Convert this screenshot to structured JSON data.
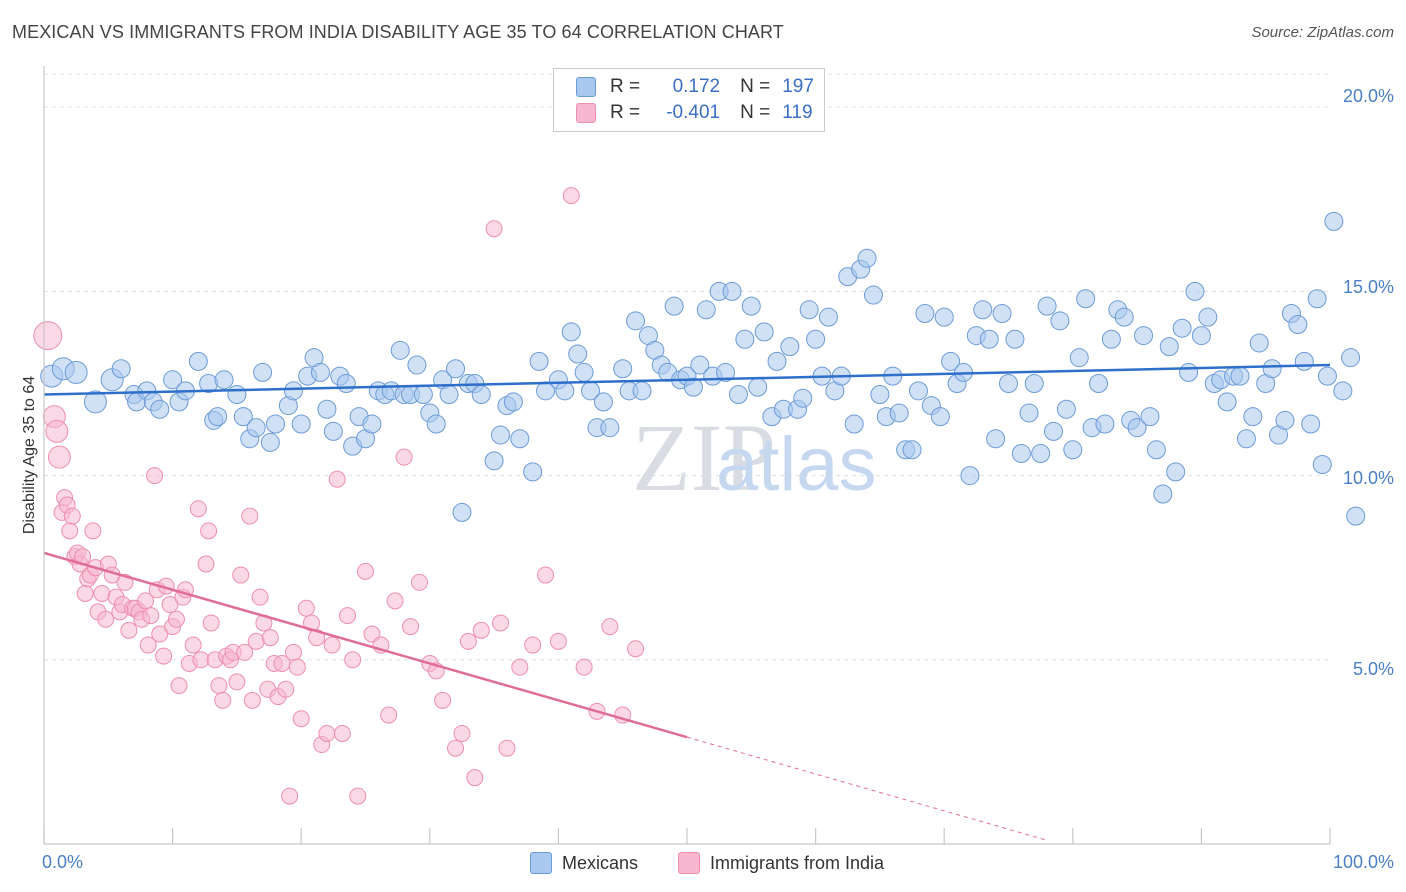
{
  "header": {
    "title": "MEXICAN VS IMMIGRANTS FROM INDIA DISABILITY AGE 35 TO 64 CORRELATION CHART",
    "source": "Source: ZipAtlas.com"
  },
  "legend": {
    "r_label": "R =",
    "n_label": "N =",
    "series1": {
      "r": "0.172",
      "n": "197"
    },
    "series2": {
      "r": "-0.401",
      "n": "119"
    }
  },
  "bottom_legend": {
    "series1": "Mexicans",
    "series2": "Immigrants from India"
  },
  "axes": {
    "ylabel": "Disability Age 35 to 64",
    "x_min_label": "0.0%",
    "x_max_label": "100.0%",
    "y_ticks": [
      "20.0%",
      "15.0%",
      "10.0%",
      "5.0%"
    ]
  },
  "watermark": {
    "zip": "ZIP",
    "atlas": "atlas"
  },
  "colors": {
    "blue_fill": "#a9c8ef",
    "blue_stroke": "#6d9bd6",
    "blue_line": "#2f6fcc",
    "pink_fill": "#f7b8cf",
    "pink_stroke": "#ec8fb0",
    "pink_line": "#e06d98"
  },
  "chart_data": {
    "type": "scatter",
    "title": "MEXICAN VS IMMIGRANTS FROM INDIA DISABILITY AGE 35 TO 64 CORRELATION CHART",
    "xlabel": "",
    "ylabel": "Disability Age 35 to 64",
    "xlim": [
      0,
      100
    ],
    "ylim": [
      0,
      20.9
    ],
    "grid": true,
    "legend_position": "top-center",
    "series": [
      {
        "name": "Mexicans",
        "r": 0.172,
        "n": 197,
        "trend": [
          [
            0,
            12.2
          ],
          [
            100,
            13.0
          ]
        ],
        "points": [
          [
            0.6,
            12.7
          ],
          [
            1.5,
            12.9
          ],
          [
            2.5,
            12.8
          ],
          [
            4,
            12.0
          ],
          [
            5.3,
            12.6
          ],
          [
            6,
            12.9
          ],
          [
            7,
            12.2
          ],
          [
            7.2,
            12.0
          ],
          [
            8,
            12.3
          ],
          [
            8.5,
            12.0
          ],
          [
            9,
            11.8
          ],
          [
            10,
            12.6
          ],
          [
            10.5,
            12.0
          ],
          [
            11,
            12.3
          ],
          [
            12,
            13.1
          ],
          [
            12.8,
            12.5
          ],
          [
            13.2,
            11.5
          ],
          [
            13.5,
            11.6
          ],
          [
            14,
            12.6
          ],
          [
            15,
            12.2
          ],
          [
            15.5,
            11.6
          ],
          [
            16,
            11.0
          ],
          [
            16.5,
            11.3
          ],
          [
            17,
            12.8
          ],
          [
            17.6,
            10.9
          ],
          [
            18,
            11.4
          ],
          [
            19,
            11.9
          ],
          [
            19.4,
            12.3
          ],
          [
            20,
            11.4
          ],
          [
            20.5,
            12.7
          ],
          [
            21,
            13.2
          ],
          [
            21.5,
            12.8
          ],
          [
            22,
            11.8
          ],
          [
            22.5,
            11.2
          ],
          [
            23,
            12.7
          ],
          [
            23.5,
            12.5
          ],
          [
            24,
            10.8
          ],
          [
            24.5,
            11.6
          ],
          [
            25,
            11.0
          ],
          [
            25.5,
            11.4
          ],
          [
            26,
            12.3
          ],
          [
            26.5,
            12.2
          ],
          [
            27,
            12.3
          ],
          [
            27.7,
            13.4
          ],
          [
            28,
            12.2
          ],
          [
            28.5,
            12.2
          ],
          [
            29,
            13.0
          ],
          [
            29.5,
            12.2
          ],
          [
            30,
            11.7
          ],
          [
            30.5,
            11.4
          ],
          [
            31,
            12.6
          ],
          [
            31.5,
            12.2
          ],
          [
            32,
            12.9
          ],
          [
            32.5,
            9.0
          ],
          [
            33,
            12.5
          ],
          [
            33.5,
            12.5
          ],
          [
            34,
            12.2
          ],
          [
            35,
            10.4
          ],
          [
            35.5,
            11.1
          ],
          [
            36,
            11.9
          ],
          [
            36.5,
            12.0
          ],
          [
            37,
            11.0
          ],
          [
            38,
            10.1
          ],
          [
            38.5,
            13.1
          ],
          [
            39,
            12.3
          ],
          [
            40,
            12.6
          ],
          [
            40.5,
            12.3
          ],
          [
            41,
            13.9
          ],
          [
            41.5,
            13.3
          ],
          [
            42,
            12.8
          ],
          [
            42.5,
            12.3
          ],
          [
            43,
            11.3
          ],
          [
            43.5,
            12.0
          ],
          [
            44,
            11.3
          ],
          [
            45,
            12.9
          ],
          [
            45.5,
            12.3
          ],
          [
            46,
            14.2
          ],
          [
            46.5,
            12.3
          ],
          [
            47,
            13.8
          ],
          [
            47.5,
            13.4
          ],
          [
            48,
            13.0
          ],
          [
            48.5,
            12.8
          ],
          [
            49,
            14.6
          ],
          [
            49.5,
            12.6
          ],
          [
            50,
            12.7
          ],
          [
            50.5,
            12.4
          ],
          [
            51,
            13.0
          ],
          [
            51.5,
            14.5
          ],
          [
            52,
            12.7
          ],
          [
            52.5,
            15.0
          ],
          [
            53,
            12.8
          ],
          [
            53.5,
            15.0
          ],
          [
            54,
            12.2
          ],
          [
            54.5,
            13.7
          ],
          [
            55,
            14.6
          ],
          [
            55.5,
            12.4
          ],
          [
            56,
            13.9
          ],
          [
            56.6,
            11.6
          ],
          [
            57,
            13.1
          ],
          [
            57.5,
            11.8
          ],
          [
            58,
            13.5
          ],
          [
            58.6,
            11.8
          ],
          [
            59,
            12.1
          ],
          [
            59.5,
            14.5
          ],
          [
            60,
            13.7
          ],
          [
            60.5,
            12.7
          ],
          [
            61,
            14.3
          ],
          [
            61.5,
            12.3
          ],
          [
            62,
            12.7
          ],
          [
            62.5,
            15.4
          ],
          [
            63,
            11.4
          ],
          [
            63.5,
            15.6
          ],
          [
            64,
            15.9
          ],
          [
            64.5,
            14.9
          ],
          [
            65,
            12.2
          ],
          [
            65.5,
            11.6
          ],
          [
            66,
            12.7
          ],
          [
            66.5,
            11.7
          ],
          [
            67,
            10.7
          ],
          [
            67.5,
            10.7
          ],
          [
            68,
            12.3
          ],
          [
            68.5,
            14.4
          ],
          [
            69,
            11.9
          ],
          [
            69.7,
            11.6
          ],
          [
            70,
            14.3
          ],
          [
            70.5,
            13.1
          ],
          [
            71,
            12.5
          ],
          [
            71.5,
            12.8
          ],
          [
            72,
            10.0
          ],
          [
            72.5,
            13.8
          ],
          [
            73,
            14.5
          ],
          [
            73.5,
            13.7
          ],
          [
            74,
            11.0
          ],
          [
            74.5,
            14.4
          ],
          [
            75,
            12.5
          ],
          [
            75.5,
            13.7
          ],
          [
            76,
            10.6
          ],
          [
            76.6,
            11.7
          ],
          [
            77,
            12.5
          ],
          [
            77.5,
            10.6
          ],
          [
            78,
            14.6
          ],
          [
            78.5,
            11.2
          ],
          [
            79,
            14.2
          ],
          [
            79.5,
            11.8
          ],
          [
            80,
            10.7
          ],
          [
            80.5,
            13.2
          ],
          [
            81,
            14.8
          ],
          [
            81.5,
            11.3
          ],
          [
            82,
            12.5
          ],
          [
            82.5,
            11.4
          ],
          [
            83,
            13.7
          ],
          [
            83.5,
            14.5
          ],
          [
            84,
            14.3
          ],
          [
            84.5,
            11.5
          ],
          [
            85,
            11.3
          ],
          [
            85.5,
            13.8
          ],
          [
            86,
            11.6
          ],
          [
            86.5,
            10.7
          ],
          [
            87,
            9.5
          ],
          [
            87.5,
            13.5
          ],
          [
            88,
            10.1
          ],
          [
            88.5,
            14.0
          ],
          [
            89,
            12.8
          ],
          [
            89.5,
            15.0
          ],
          [
            90,
            13.8
          ],
          [
            90.5,
            14.3
          ],
          [
            91,
            12.5
          ],
          [
            91.5,
            12.6
          ],
          [
            92,
            12.0
          ],
          [
            92.5,
            12.7
          ],
          [
            93,
            12.7
          ],
          [
            93.5,
            11.0
          ],
          [
            94,
            11.6
          ],
          [
            94.5,
            13.6
          ],
          [
            95,
            12.5
          ],
          [
            95.5,
            12.9
          ],
          [
            96,
            11.1
          ],
          [
            96.5,
            11.5
          ],
          [
            97,
            14.4
          ],
          [
            97.5,
            14.1
          ],
          [
            98,
            13.1
          ],
          [
            98.5,
            11.4
          ],
          [
            99,
            14.8
          ],
          [
            99.4,
            10.3
          ],
          [
            99.8,
            12.7
          ],
          [
            100.3,
            16.9
          ],
          [
            101,
            12.3
          ],
          [
            101.6,
            13.2
          ],
          [
            102,
            8.9
          ]
        ]
      },
      {
        "name": "Immigrants from India",
        "r": -0.401,
        "n": 119,
        "trend": [
          [
            0,
            7.9
          ],
          [
            50,
            2.9
          ]
        ],
        "trend_dashed": [
          [
            50,
            2.9
          ],
          [
            78,
            0.1
          ]
        ],
        "points": [
          [
            0.3,
            13.8
          ],
          [
            0.8,
            11.6
          ],
          [
            1.0,
            11.2
          ],
          [
            1.2,
            10.5
          ],
          [
            1.4,
            9.0
          ],
          [
            1.6,
            9.4
          ],
          [
            1.8,
            9.2
          ],
          [
            2.0,
            8.5
          ],
          [
            2.2,
            8.9
          ],
          [
            2.4,
            7.8
          ],
          [
            2.6,
            7.9
          ],
          [
            2.8,
            7.6
          ],
          [
            3.0,
            7.8
          ],
          [
            3.2,
            6.8
          ],
          [
            3.4,
            7.2
          ],
          [
            3.6,
            7.3
          ],
          [
            3.8,
            8.5
          ],
          [
            4.0,
            7.5
          ],
          [
            4.2,
            6.3
          ],
          [
            4.5,
            6.8
          ],
          [
            4.8,
            6.1
          ],
          [
            5.0,
            7.6
          ],
          [
            5.3,
            7.3
          ],
          [
            5.6,
            6.7
          ],
          [
            5.9,
            6.3
          ],
          [
            6.1,
            6.5
          ],
          [
            6.3,
            7.1
          ],
          [
            6.6,
            5.8
          ],
          [
            6.9,
            6.4
          ],
          [
            7.1,
            6.4
          ],
          [
            7.4,
            6.3
          ],
          [
            7.6,
            6.1
          ],
          [
            7.9,
            6.6
          ],
          [
            8.1,
            5.4
          ],
          [
            8.3,
            6.2
          ],
          [
            8.6,
            10.0
          ],
          [
            8.8,
            6.9
          ],
          [
            9.0,
            5.7
          ],
          [
            9.3,
            5.1
          ],
          [
            9.5,
            7.0
          ],
          [
            9.8,
            6.5
          ],
          [
            10.0,
            5.9
          ],
          [
            10.3,
            6.1
          ],
          [
            10.5,
            4.3
          ],
          [
            10.8,
            6.7
          ],
          [
            11.0,
            6.9
          ],
          [
            11.3,
            4.9
          ],
          [
            11.6,
            5.4
          ],
          [
            12.0,
            9.1
          ],
          [
            12.2,
            5.0
          ],
          [
            12.6,
            7.6
          ],
          [
            12.8,
            8.5
          ],
          [
            13.0,
            6.0
          ],
          [
            13.3,
            5.0
          ],
          [
            13.6,
            4.3
          ],
          [
            13.9,
            3.9
          ],
          [
            14.2,
            5.1
          ],
          [
            14.5,
            5.0
          ],
          [
            14.7,
            5.2
          ],
          [
            15.0,
            4.4
          ],
          [
            15.3,
            7.3
          ],
          [
            15.6,
            5.2
          ],
          [
            16.0,
            8.9
          ],
          [
            16.2,
            3.9
          ],
          [
            16.5,
            5.5
          ],
          [
            16.8,
            6.7
          ],
          [
            17.1,
            6.0
          ],
          [
            17.4,
            4.2
          ],
          [
            17.6,
            5.6
          ],
          [
            17.9,
            4.9
          ],
          [
            18.2,
            4.0
          ],
          [
            18.5,
            4.9
          ],
          [
            18.8,
            4.2
          ],
          [
            19.1,
            1.3
          ],
          [
            19.4,
            5.2
          ],
          [
            19.7,
            4.8
          ],
          [
            20.0,
            3.4
          ],
          [
            20.4,
            6.4
          ],
          [
            20.8,
            6.0
          ],
          [
            21.2,
            5.6
          ],
          [
            21.6,
            2.7
          ],
          [
            22.0,
            3.0
          ],
          [
            22.4,
            5.4
          ],
          [
            22.8,
            9.9
          ],
          [
            23.2,
            3.0
          ],
          [
            23.6,
            6.2
          ],
          [
            24.0,
            5.0
          ],
          [
            24.4,
            1.3
          ],
          [
            25.0,
            7.4
          ],
          [
            25.5,
            5.7
          ],
          [
            26.2,
            5.4
          ],
          [
            26.8,
            3.5
          ],
          [
            27.3,
            6.6
          ],
          [
            28.0,
            10.5
          ],
          [
            28.5,
            5.9
          ],
          [
            29.2,
            7.1
          ],
          [
            30.0,
            4.9
          ],
          [
            30.5,
            4.7
          ],
          [
            31.0,
            3.9
          ],
          [
            32.0,
            2.6
          ],
          [
            32.5,
            3.0
          ],
          [
            33.0,
            5.5
          ],
          [
            33.5,
            1.8
          ],
          [
            34.0,
            5.8
          ],
          [
            35.0,
            16.7
          ],
          [
            35.5,
            6.0
          ],
          [
            36.0,
            2.6
          ],
          [
            37.0,
            4.8
          ],
          [
            38.0,
            5.4
          ],
          [
            39.0,
            7.3
          ],
          [
            40.0,
            5.5
          ],
          [
            41.0,
            17.6
          ],
          [
            42.0,
            4.8
          ],
          [
            43.0,
            3.6
          ],
          [
            44.0,
            5.9
          ],
          [
            45.0,
            3.5
          ],
          [
            46.0,
            5.3
          ]
        ]
      }
    ]
  }
}
